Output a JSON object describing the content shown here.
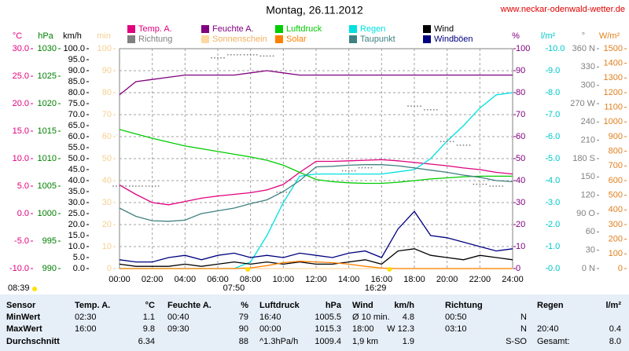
{
  "chart_data": {
    "type": "line",
    "title": "Montag, 26.11.2012",
    "source": "www.neckar-odenwald-wetter.de",
    "x": [
      0,
      1,
      2,
      3,
      4,
      5,
      6,
      7,
      8,
      9,
      10,
      11,
      12,
      13,
      14,
      15,
      16,
      17,
      18,
      19,
      20,
      21,
      22,
      23,
      24
    ],
    "xlim": [
      0,
      24
    ],
    "xticks": [
      {
        "value": 0,
        "label": "00:00"
      },
      {
        "value": 2,
        "label": "02:00"
      },
      {
        "value": 4,
        "label": "04:00"
      },
      {
        "value": 6,
        "label": "06:00"
      },
      {
        "value": 8,
        "label": "08:00"
      },
      {
        "value": 10,
        "label": "10:00"
      },
      {
        "value": 12,
        "label": "12:00"
      },
      {
        "value": 14,
        "label": "14:00"
      },
      {
        "value": 16,
        "label": "16:00"
      },
      {
        "value": 18,
        "label": "18:00"
      },
      {
        "value": 20,
        "label": "20:00"
      },
      {
        "value": 22,
        "label": "22:00"
      },
      {
        "value": 24,
        "label": "24:00"
      }
    ],
    "grid": true,
    "axes": {
      "y1": {
        "label": "°C",
        "color": "#e0007f",
        "lim": [
          -10,
          30
        ],
        "ticks": [
          {
            "value": -10,
            "label": "-10.0"
          },
          {
            "value": -5,
            "label": "-5.0"
          },
          {
            "value": 0,
            "label": "0.0"
          },
          {
            "value": 5,
            "label": "5.0"
          },
          {
            "value": 10,
            "label": "10.0"
          },
          {
            "value": 15,
            "label": "15.0"
          },
          {
            "value": 20,
            "label": "20.0"
          },
          {
            "value": 25,
            "label": "25.0"
          },
          {
            "value": 30,
            "label": "30.0"
          }
        ]
      },
      "y2": {
        "label": "hPa",
        "color": "#008000",
        "lim": [
          990,
          1030
        ],
        "ticks": [
          990,
          995,
          1000,
          1005,
          1010,
          1015,
          1020,
          1025,
          1030
        ]
      },
      "y3": {
        "label": "km/h",
        "color": "#000000",
        "lim": [
          0,
          100
        ],
        "ticks": [
          {
            "value": 0,
            "label": "0.0"
          },
          {
            "value": 5,
            "label": "5.0"
          },
          {
            "value": 10,
            "label": "10.0"
          },
          {
            "value": 15,
            "label": "15.0"
          },
          {
            "value": 20,
            "label": "20.0"
          },
          {
            "value": 25,
            "label": "25.0"
          },
          {
            "value": 30,
            "label": "30.0"
          },
          {
            "value": 35,
            "label": "35.0"
          },
          {
            "value": 40,
            "label": "40.0"
          },
          {
            "value": 45,
            "label": "45.0"
          },
          {
            "value": 50,
            "label": "50.0"
          },
          {
            "value": 55,
            "label": "55.0"
          },
          {
            "value": 60,
            "label": "60.0"
          },
          {
            "value": 65,
            "label": "65.0"
          },
          {
            "value": 70,
            "label": "70.0"
          },
          {
            "value": 75,
            "label": "75.0"
          },
          {
            "value": 80,
            "label": "80.0"
          },
          {
            "value": 85,
            "label": "85.0"
          },
          {
            "value": 90,
            "label": "90.0"
          },
          {
            "value": 95,
            "label": "95.0"
          },
          {
            "value": 100,
            "label": "100.0"
          }
        ]
      },
      "y4": {
        "label": "min",
        "color": "#f5d090",
        "lim": [
          0,
          100
        ],
        "ticks": [
          0,
          10,
          20,
          30,
          40,
          50,
          60,
          70,
          80,
          90,
          100
        ]
      },
      "y5": {
        "label": "%",
        "color": "#800080",
        "lim": [
          0,
          100
        ],
        "ticks": [
          0,
          10,
          20,
          30,
          40,
          50,
          60,
          70,
          80,
          90,
          100
        ]
      },
      "y6": {
        "label": "l/m²",
        "color": "#00c8c8",
        "lim": [
          0,
          10
        ],
        "ticks": [
          {
            "value": 0,
            "label": "0.0"
          },
          {
            "value": 1,
            "label": "1.0"
          },
          {
            "value": 2,
            "label": "2.0"
          },
          {
            "value": 3,
            "label": "3.0"
          },
          {
            "value": 4,
            "label": "4.0"
          },
          {
            "value": 5,
            "label": "5.0"
          },
          {
            "value": 6,
            "label": "6.0"
          },
          {
            "value": 7,
            "label": "7.0"
          },
          {
            "value": 8,
            "label": "8.0"
          },
          {
            "value": 9,
            "label": "9.0"
          },
          {
            "value": 10,
            "label": "10.0"
          }
        ]
      },
      "y7": {
        "label": "°",
        "color": "#808080",
        "lim": [
          0,
          360
        ],
        "ticks": [
          {
            "value": 0,
            "label": "0 N"
          },
          30,
          60,
          {
            "value": 90,
            "label": "90 O"
          },
          120,
          150,
          {
            "value": 180,
            "label": "180 S"
          },
          210,
          240,
          {
            "value": 270,
            "label": "270 W"
          },
          300,
          330,
          {
            "value": 360,
            "label": "360 N"
          }
        ]
      },
      "y8": {
        "label": "W/m²",
        "color": "#e08020",
        "lim": [
          0,
          1500
        ],
        "ticks": [
          0,
          100,
          200,
          300,
          400,
          500,
          600,
          700,
          800,
          900,
          1000,
          1100,
          1200,
          1300,
          1400,
          1500
        ]
      }
    },
    "series": [
      {
        "name": "Temp. A.",
        "color": "#e0007f",
        "axis": "y1",
        "values": [
          5.2,
          3.5,
          2.0,
          1.6,
          2.2,
          2.8,
          3.2,
          3.5,
          3.8,
          4.3,
          5.3,
          7.5,
          9.5,
          9.5,
          9.6,
          9.7,
          9.8,
          9.6,
          9.3,
          9.0,
          8.7,
          8.3,
          8.0,
          7.5,
          7.2
        ]
      },
      {
        "name": "Feuchte A.",
        "color": "#800080",
        "axis": "y5",
        "values": [
          79,
          85,
          86,
          87,
          88,
          88,
          88,
          88,
          89,
          90,
          89,
          88,
          88,
          88,
          88,
          88,
          88,
          88,
          88,
          88,
          88,
          88,
          88,
          88,
          88
        ]
      },
      {
        "name": "Luftdruck",
        "color": "#00cc00",
        "axis": "y2",
        "values": [
          1015.3,
          1014.5,
          1013.7,
          1013.0,
          1012.3,
          1011.8,
          1011.3,
          1010.8,
          1010.3,
          1009.7,
          1008.8,
          1007.5,
          1006.2,
          1005.8,
          1005.6,
          1005.5,
          1005.5,
          1005.7,
          1006.0,
          1006.3,
          1006.5,
          1006.7,
          1006.8,
          1006.8,
          1006.8
        ]
      },
      {
        "name": "Regen",
        "color": "#00e0e0",
        "axis": "y6",
        "values": [
          0,
          0,
          0,
          0,
          0,
          0,
          0,
          0,
          0.3,
          1.5,
          3.0,
          4.2,
          4.3,
          4.3,
          4.3,
          4.3,
          4.3,
          4.4,
          4.5,
          5.0,
          5.8,
          6.5,
          7.3,
          7.9,
          8.0
        ]
      },
      {
        "name": "Wind",
        "color": "#000000",
        "axis": "y3",
        "values": [
          2,
          1,
          1,
          1,
          2,
          1,
          2,
          3,
          2,
          3,
          2,
          3,
          2,
          2,
          3,
          4,
          2,
          8,
          9,
          6,
          5,
          4,
          6,
          5,
          4
        ]
      },
      {
        "name": "Richtung",
        "color": "#808080",
        "axis": "y7",
        "style": "dots",
        "values": [
          135,
          135,
          135,
          null,
          null,
          null,
          345,
          350,
          350,
          348,
          125,
          null,
          null,
          null,
          160,
          165,
          null,
          null,
          266,
          260,
          208,
          202,
          138,
          135,
          null
        ]
      },
      {
        "name": "Sonnenschein",
        "color": "#ffd8a0",
        "axis": "y4",
        "values": [
          0,
          0,
          0,
          0,
          0,
          0,
          0,
          0,
          0,
          0,
          0,
          0,
          0,
          0,
          0,
          0,
          0,
          0,
          0,
          0,
          0,
          0,
          0,
          0,
          0
        ]
      },
      {
        "name": "Solar",
        "color": "#ff8000",
        "axis": "y8",
        "values": [
          0,
          0,
          0,
          0,
          0,
          0,
          0,
          0,
          5,
          20,
          40,
          50,
          45,
          40,
          30,
          15,
          3,
          0,
          0,
          0,
          0,
          0,
          0,
          0,
          0
        ]
      },
      {
        "name": "Taupunkt",
        "color": "#408080",
        "axis": "y1",
        "values": [
          1.0,
          -0.5,
          -1.3,
          -1.4,
          -1.2,
          0,
          0.5,
          1.0,
          1.8,
          2.5,
          4.0,
          6.0,
          8.5,
          8.6,
          8.8,
          8.9,
          8.9,
          8.7,
          8.3,
          7.9,
          7.5,
          7.0,
          6.6,
          6.0,
          5.8
        ]
      },
      {
        "name": "Windböen",
        "color": "#000080",
        "axis": "y3",
        "values": [
          4,
          3,
          3,
          5,
          6,
          4,
          6,
          7,
          5,
          6,
          5,
          7,
          6,
          5,
          7,
          8,
          5,
          18,
          26,
          15,
          14,
          12,
          10,
          8,
          9
        ]
      }
    ],
    "sun": {
      "rise": {
        "value": 7.833,
        "label": "07:50"
      },
      "set": {
        "value": 16.483,
        "label": "16:29"
      },
      "duration": "08:39"
    }
  },
  "table": {
    "header": [
      "Sensor",
      "Temp. A.",
      "°C",
      "Feuchte A.",
      "%",
      "Luftdruck",
      "hPa",
      "Wind",
      "km/h",
      "Richtung",
      null,
      "Regen",
      "l/m²"
    ],
    "rows": [
      [
        "MinWert",
        "02:30",
        "1.1",
        "00:40",
        "79",
        "16:40",
        "1005.5",
        "Ø 10 min.",
        "4.8",
        "00:50",
        "N",
        null,
        null
      ],
      [
        "MaxWert",
        "16:00",
        "9.8",
        "09:30",
        "90",
        "00:00",
        "1015.3",
        "18:00",
        "W 12.3",
        "03:10",
        "N",
        "20:40",
        "0.4"
      ],
      [
        "Durchschnitt",
        null,
        "6.34",
        null,
        "88",
        "^1.3hPa/h",
        "1009.4",
        "1,9 km",
        "1.9",
        null,
        "S-SO",
        "Gesamt:",
        "8.0"
      ]
    ]
  }
}
